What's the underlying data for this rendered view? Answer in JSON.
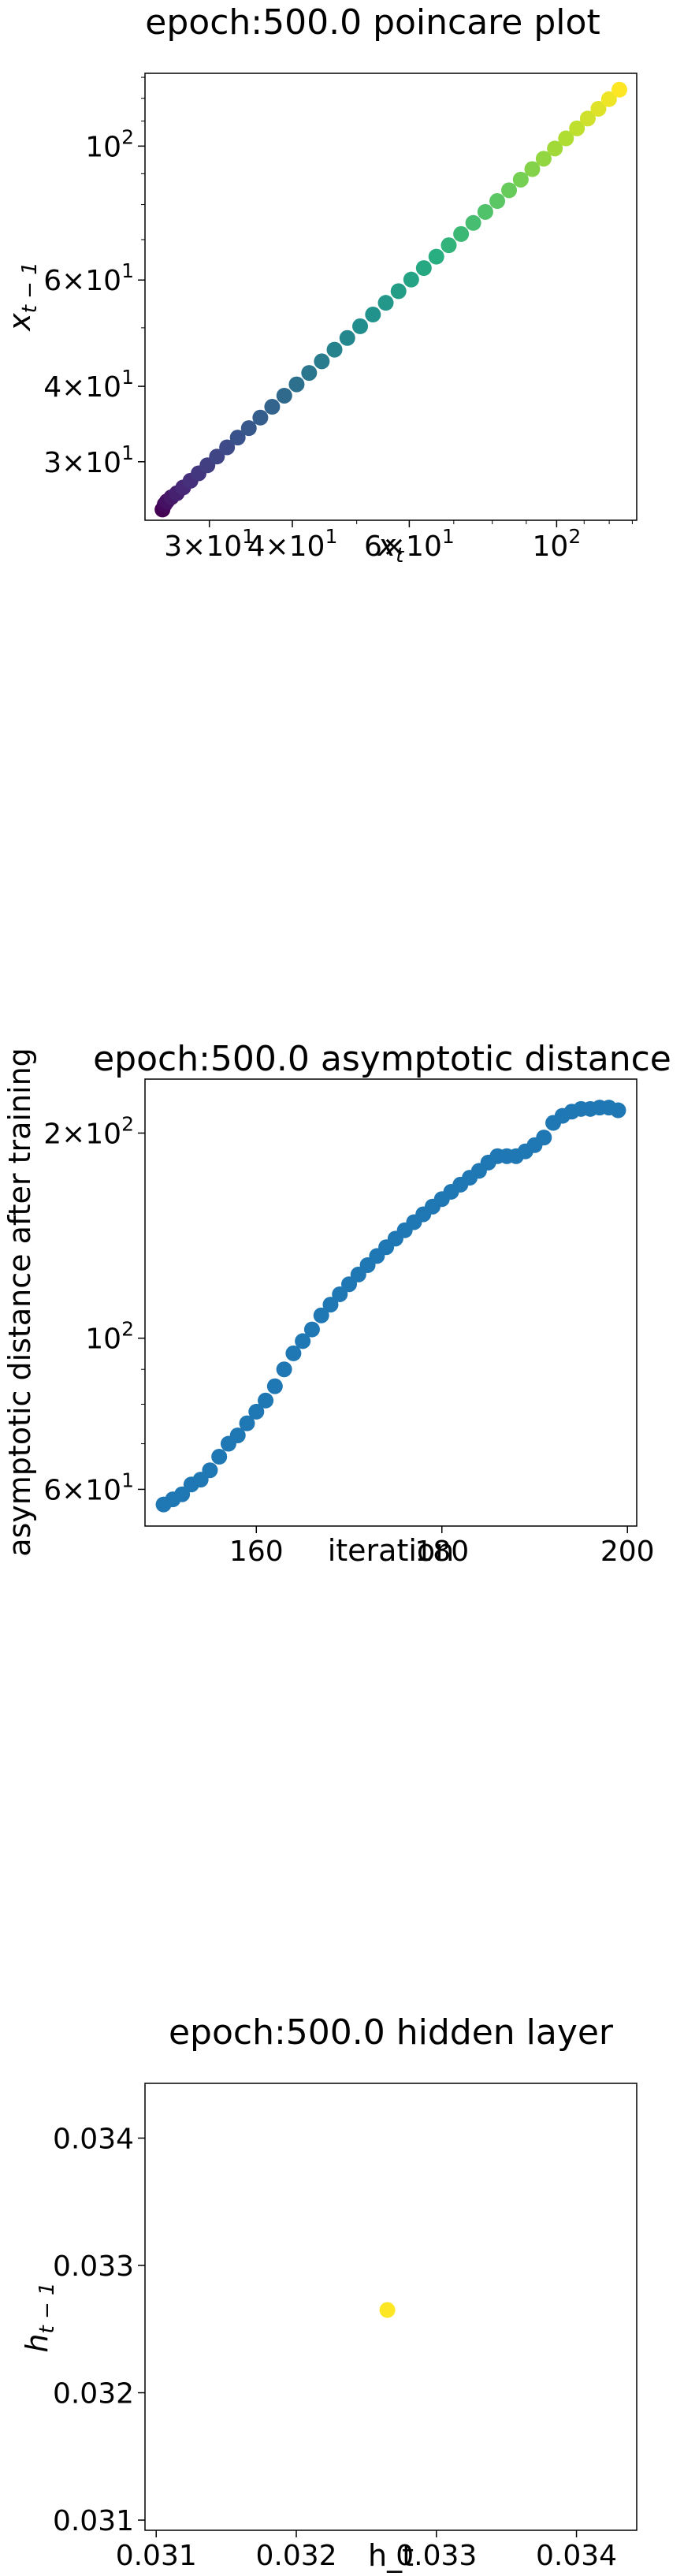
{
  "chart_data": [
    {
      "type": "scatter",
      "title": "epoch:500.0 poincare plot",
      "xlabel": "x_t",
      "ylabel": "x_{t-1}",
      "xscale": "log",
      "yscale": "log",
      "xlim": [
        24,
        132
      ],
      "ylim": [
        24,
        132
      ],
      "xticklabels": [
        "3×10^1",
        "4×10^1",
        "6×10^1",
        "10^2"
      ],
      "yticklabels": [
        "3×10^1",
        "4×10^1",
        "6×10^1",
        "10^2"
      ],
      "colormap": "viridis",
      "points": [
        [
          25.5,
          25.0
        ],
        [
          25.7,
          25.5
        ],
        [
          25.9,
          25.8
        ],
        [
          26.3,
          26.2
        ],
        [
          26.8,
          26.6
        ],
        [
          27.4,
          27.2
        ],
        [
          28.1,
          27.9
        ],
        [
          28.9,
          28.7
        ],
        [
          29.8,
          29.6
        ],
        [
          30.8,
          30.6
        ],
        [
          31.9,
          31.7
        ],
        [
          33.1,
          32.9
        ],
        [
          34.4,
          34.1
        ],
        [
          35.8,
          35.5
        ],
        [
          37.3,
          37.0
        ],
        [
          38.9,
          38.6
        ],
        [
          40.6,
          40.3
        ],
        [
          42.4,
          42.1
        ],
        [
          44.3,
          44.0
        ],
        [
          46.3,
          46.0
        ],
        [
          48.4,
          48.1
        ],
        [
          50.6,
          50.3
        ],
        [
          52.9,
          52.6
        ],
        [
          55.3,
          55.0
        ],
        [
          57.8,
          57.5
        ],
        [
          60.4,
          60.1
        ],
        [
          63.1,
          62.8
        ],
        [
          65.9,
          65.6
        ],
        [
          68.8,
          68.5
        ],
        [
          71.8,
          71.5
        ],
        [
          74.9,
          74.6
        ],
        [
          78.1,
          77.8
        ],
        [
          81.4,
          81.1
        ],
        [
          84.8,
          84.5
        ],
        [
          88.3,
          88.0
        ],
        [
          91.9,
          91.6
        ],
        [
          95.6,
          95.3
        ],
        [
          99.4,
          99.1
        ],
        [
          103.3,
          103.0
        ],
        [
          107.3,
          107.0
        ],
        [
          111.4,
          111.1
        ],
        [
          115.6,
          115.3
        ],
        [
          119.9,
          119.6
        ],
        [
          124.3,
          124.0
        ]
      ]
    },
    {
      "type": "scatter",
      "title": "epoch:500.0 asymptotic distance",
      "xlabel": "iteration",
      "ylabel": "asymptotic distance after training",
      "yscale": "log",
      "xlim": [
        148,
        201
      ],
      "ylim": [
        53,
        240
      ],
      "xticks": [
        160,
        180,
        200
      ],
      "yticklabels": [
        "6×10^1",
        "10^2",
        "2×10^2"
      ],
      "color": "#1f77b4",
      "x": [
        150,
        151,
        152,
        153,
        154,
        155,
        156,
        157,
        158,
        159,
        160,
        161,
        162,
        163,
        164,
        165,
        166,
        167,
        168,
        169,
        170,
        171,
        172,
        173,
        174,
        175,
        176,
        177,
        178,
        179,
        180,
        181,
        182,
        183,
        184,
        185,
        186,
        187,
        188,
        189,
        190,
        191,
        192,
        193,
        194,
        195,
        196,
        197,
        198,
        199
      ],
      "y": [
        57,
        58,
        59,
        61,
        62,
        64,
        67,
        70,
        72,
        75,
        78,
        81,
        85,
        90,
        95,
        99,
        103,
        108,
        112,
        116,
        120,
        124,
        128,
        132,
        136,
        140,
        144,
        148,
        152,
        156,
        160,
        164,
        168,
        172,
        176,
        181,
        185,
        185,
        185,
        188,
        192,
        197,
        207,
        212,
        215,
        217,
        217,
        218,
        218,
        216
      ]
    },
    {
      "type": "scatter",
      "title": "epoch:500.0 hidden layer",
      "xlabel": "h_t",
      "ylabel": "h_{t-1}",
      "xlim": [
        0.03092,
        0.03443
      ],
      "ylim": [
        0.03092,
        0.03443
      ],
      "xticks": [
        "0.031",
        "0.032",
        "0.033",
        "0.034"
      ],
      "yticks": [
        "0.031",
        "0.032",
        "0.033",
        "0.034"
      ],
      "color": "#fde725",
      "points": [
        [
          0.03265,
          0.03265
        ]
      ]
    }
  ]
}
